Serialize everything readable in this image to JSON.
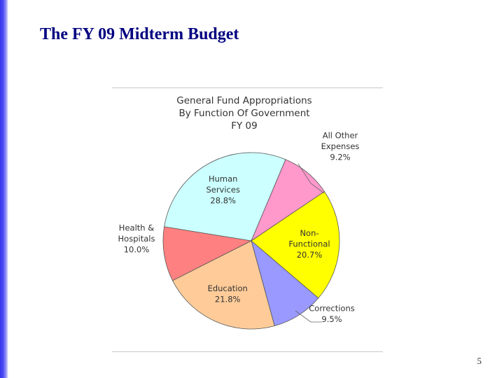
{
  "slide": {
    "title": "The FY 09 Midterm Budget",
    "page_number": "5"
  },
  "chart_data": {
    "type": "pie",
    "title_lines": [
      "General Fund Appropriations",
      "By Function Of Government",
      "FY 09"
    ],
    "slices": [
      {
        "label_lines": [
          "Non-",
          "Functional",
          "20.7%"
        ],
        "category": "Non-Functional",
        "value": 20.7,
        "color": "#ffff00",
        "label_position": "inside"
      },
      {
        "label_lines": [
          "Corrections",
          "9.5%"
        ],
        "category": "Corrections",
        "value": 9.5,
        "color": "#9999ff",
        "label_position": "outside"
      },
      {
        "label_lines": [
          "Education",
          "21.8%"
        ],
        "category": "Education",
        "value": 21.8,
        "color": "#ffcc99",
        "label_position": "inside"
      },
      {
        "label_lines": [
          "Health &",
          "Hospitals",
          "10.0%"
        ],
        "category": "Health & Hospitals",
        "value": 10.0,
        "color": "#ff8080",
        "label_position": "outside"
      },
      {
        "label_lines": [
          "Human",
          "Services",
          "28.8%"
        ],
        "category": "Human Services",
        "value": 28.8,
        "color": "#ccffff",
        "label_position": "inside"
      },
      {
        "label_lines": [
          "All Other",
          "Expenses",
          "9.2%"
        ],
        "category": "All Other Expenses",
        "value": 9.2,
        "color": "#ff99cc",
        "label_position": "outside"
      }
    ]
  }
}
